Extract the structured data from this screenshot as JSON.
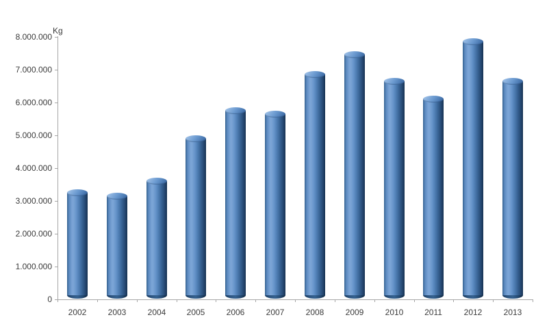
{
  "chart_data": {
    "type": "bar",
    "subtype": "cylinder-3d",
    "title": "",
    "xlabel": "",
    "ylabel": "Kg",
    "categories": [
      "2002",
      "2003",
      "2004",
      "2005",
      "2006",
      "2007",
      "2008",
      "2009",
      "2010",
      "2011",
      "2012",
      "2013"
    ],
    "values": [
      3350000,
      3250000,
      3700000,
      5000000,
      5850000,
      5750000,
      6950000,
      7550000,
      6750000,
      6200000,
      7950000,
      6750000
    ],
    "ylim": [
      0,
      8000000
    ],
    "ytick_interval": 1000000,
    "ytick_labels": [
      "8.000.000",
      "7.000.000",
      "6.000.000",
      "5.000.000",
      "4.000.000",
      "3.000.000",
      "2.000.000",
      "1.000.000",
      "0"
    ],
    "grid": false,
    "legend": "none",
    "colors": {
      "bar_main": "#4F81BD",
      "bar_highlight": "#7BA4D6",
      "bar_shadow": "#16304E",
      "axis": "#A6A6A6",
      "text": "#3A3A3A",
      "background": "#FFFFFF"
    }
  }
}
